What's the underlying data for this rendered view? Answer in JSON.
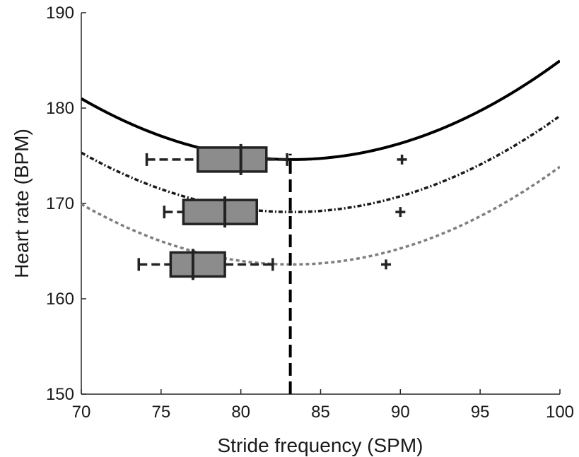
{
  "chart_data": {
    "type": "line",
    "xlabel": "Stride frequency (SPM)",
    "ylabel": "Heart rate (BPM)",
    "xlim": [
      70,
      100
    ],
    "ylim": [
      150,
      190
    ],
    "xticks": [
      70,
      75,
      80,
      85,
      90,
      95,
      100
    ],
    "yticks": [
      150,
      160,
      170,
      180,
      190
    ],
    "grid": false,
    "curves": [
      {
        "style": "solid",
        "color": "#000000",
        "vertex_x": 83.2,
        "vertex_y": 174.6,
        "a": 0.0367
      },
      {
        "style": "dash-dot",
        "color": "#1a1a1a",
        "vertex_x": 83.2,
        "vertex_y": 169.1,
        "a": 0.0357
      },
      {
        "style": "dotted",
        "color": "#7f7f7f",
        "vertex_x": 83.2,
        "vertex_y": 163.6,
        "a": 0.0363
      }
    ],
    "vertical_line": {
      "x": 83.1,
      "style": "dashed",
      "color": "#000000"
    },
    "boxplots": [
      {
        "y": 174.6,
        "whisker_low": 74.1,
        "q1": 77.3,
        "median": 80.0,
        "q3": 81.6,
        "whisker_high": 82.9,
        "outliers": [
          90.1
        ],
        "color": "#8c8c8c"
      },
      {
        "y": 169.1,
        "whisker_low": 75.2,
        "q1": 76.4,
        "median": 79.0,
        "q3": 81.0,
        "whisker_high": 81.0,
        "outliers": [
          90.0
        ],
        "color": "#8c8c8c"
      },
      {
        "y": 163.6,
        "whisker_low": 73.6,
        "q1": 75.6,
        "median": 77.0,
        "q3": 79.0,
        "whisker_high": 82.0,
        "outliers": [
          89.1
        ],
        "color": "#8c8c8c"
      }
    ]
  }
}
